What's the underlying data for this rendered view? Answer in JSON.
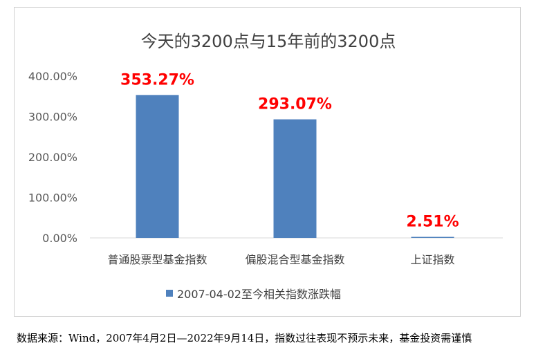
{
  "chart_data": {
    "type": "bar",
    "title": "今天的3200点与15年前的3200点",
    "categories": [
      "普通股票型基金指数",
      "偏股混合型基金指数",
      "上证指数"
    ],
    "series": [
      {
        "name": "2007-04-02至今相关指数涨跌幅",
        "values": [
          353.27,
          293.07,
          2.51
        ]
      }
    ],
    "data_labels": [
      "353.27%",
      "293.07%",
      "2.51%"
    ],
    "y_ticks": [
      "0.00%",
      "100.00%",
      "200.00%",
      "300.00%",
      "400.00%"
    ],
    "ylim": [
      0,
      400
    ],
    "grid": false,
    "legend_position": "bottom",
    "bar_color": "#4f81bd",
    "label_color": "#ff0000"
  },
  "footer": {
    "source": "数据来源：Wind，2007年4月2日—2022年9月14日，指数过往表现不预示未来，基金投资需谨慎"
  }
}
